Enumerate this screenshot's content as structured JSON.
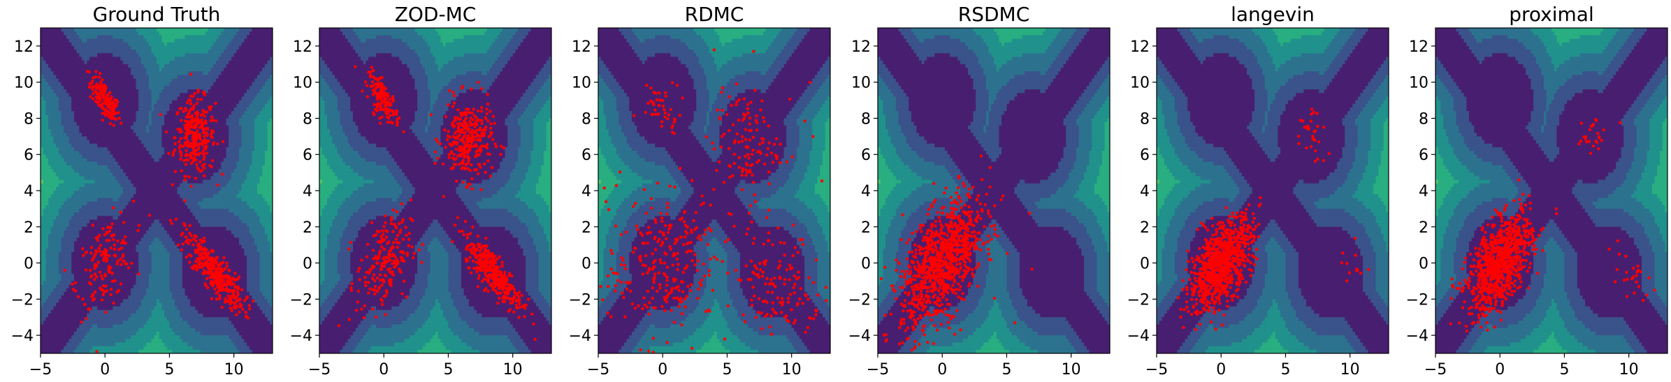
{
  "chart_data": [
    {
      "type": "scatter",
      "title": "Ground Truth",
      "xlim": [
        -5,
        13
      ],
      "ylim": [
        -5,
        13
      ],
      "xticks": [
        -5,
        0,
        5,
        10
      ],
      "yticks": [
        -4,
        -2,
        0,
        2,
        4,
        6,
        8,
        10,
        12
      ],
      "background": "filled contour of potential (purple low to yellow high)",
      "point_color": "#ff0000",
      "clusters": [
        {
          "center": [
            0,
            9
          ],
          "cov": [
            [
              0.35,
              -0.28
            ],
            [
              -0.28,
              0.45
            ]
          ],
          "n": 150
        },
        {
          "center": [
            7,
            7
          ],
          "cov": [
            [
              0.6,
              0.0
            ],
            [
              0.0,
              1.1
            ]
          ],
          "n": 300
        },
        {
          "center": [
            0,
            0
          ],
          "cov": [
            [
              1.2,
              0.6
            ],
            [
              0.6,
              1.6
            ]
          ],
          "n": 150
        },
        {
          "center": [
            8.5,
            -0.5
          ],
          "cov": [
            [
              1.3,
              -1.0
            ],
            [
              -1.0,
              1.1
            ]
          ],
          "n": 400
        }
      ]
    },
    {
      "type": "scatter",
      "title": "ZOD-MC",
      "xlim": [
        -5,
        13
      ],
      "ylim": [
        -5,
        13
      ],
      "xticks": [
        -5,
        0,
        5,
        10
      ],
      "yticks": [
        -4,
        -2,
        0,
        2,
        4,
        6,
        8,
        10,
        12
      ],
      "point_color": "#ff0000",
      "clusters": [
        {
          "center": [
            0,
            9
          ],
          "cov": [
            [
              0.35,
              -0.28
            ],
            [
              -0.28,
              0.45
            ]
          ],
          "n": 150
        },
        {
          "center": [
            6.5,
            6.8
          ],
          "cov": [
            [
              0.9,
              0.0
            ],
            [
              0.0,
              1.2
            ]
          ],
          "n": 300
        },
        {
          "center": [
            0,
            0
          ],
          "cov": [
            [
              1.1,
              0.5
            ],
            [
              0.5,
              1.8
            ]
          ],
          "n": 200
        },
        {
          "center": [
            8.5,
            -0.5
          ],
          "cov": [
            [
              1.3,
              -1.0
            ],
            [
              -1.0,
              1.1
            ]
          ],
          "n": 350
        }
      ]
    },
    {
      "type": "scatter",
      "title": "RDMC",
      "xlim": [
        -5,
        13
      ],
      "ylim": [
        -5,
        13
      ],
      "xticks": [
        -5,
        0,
        5,
        10
      ],
      "yticks": [
        -4,
        -2,
        0,
        2,
        4,
        6,
        8,
        10,
        12
      ],
      "point_color": "#ff0000",
      "clusters": [
        {
          "center": [
            0,
            8.5
          ],
          "cov": [
            [
              0.5,
              -0.2
            ],
            [
              -0.2,
              0.5
            ]
          ],
          "n": 40
        },
        {
          "center": [
            6.5,
            6.5
          ],
          "cov": [
            [
              1.6,
              0.0
            ],
            [
              0.0,
              2.2
            ]
          ],
          "n": 120
        },
        {
          "center": [
            0,
            0
          ],
          "cov": [
            [
              4.5,
              1.0
            ],
            [
              1.0,
              4.5
            ]
          ],
          "n": 260
        },
        {
          "center": [
            9,
            -1
          ],
          "cov": [
            [
              3.0,
              -0.8
            ],
            [
              -0.8,
              2.5
            ]
          ],
          "n": 140
        },
        {
          "center": [
            4,
            4
          ],
          "cov": [
            [
              40,
              0
            ],
            [
              0,
              40
            ]
          ],
          "n": 40
        }
      ]
    },
    {
      "type": "scatter",
      "title": "RSDMC",
      "xlim": [
        -5,
        13
      ],
      "ylim": [
        -5,
        13
      ],
      "xticks": [
        -5,
        0,
        5,
        10
      ],
      "yticks": [
        -4,
        -2,
        0,
        2,
        4,
        6,
        8,
        10,
        12
      ],
      "point_color": "#ff0000",
      "clusters": [
        {
          "center": [
            0,
            0
          ],
          "cov": [
            [
              2.5,
              1.5
            ],
            [
              1.5,
              3.0
            ]
          ],
          "n": 1000
        },
        {
          "center": [
            1,
            -1
          ],
          "cov": [
            [
              12,
              4
            ],
            [
              4,
              10
            ]
          ],
          "n": 20
        }
      ]
    },
    {
      "type": "scatter",
      "title": "langevin",
      "xlim": [
        -5,
        13
      ],
      "ylim": [
        -5,
        13
      ],
      "xticks": [
        -5,
        0,
        5,
        10
      ],
      "yticks": [
        -4,
        -2,
        0,
        2,
        4,
        6,
        8,
        10,
        12
      ],
      "point_color": "#ff0000",
      "clusters": [
        {
          "center": [
            0,
            0
          ],
          "cov": [
            [
              1.5,
              0.9
            ],
            [
              0.9,
              1.6
            ]
          ],
          "n": 900
        },
        {
          "center": [
            7,
            7
          ],
          "cov": [
            [
              0.4,
              0.0
            ],
            [
              0.0,
              0.9
            ]
          ],
          "n": 30
        },
        {
          "center": [
            10.5,
            -0.2
          ],
          "cov": [
            [
              0.5,
              -0.2
            ],
            [
              -0.2,
              0.6
            ]
          ],
          "n": 12
        }
      ]
    },
    {
      "type": "scatter",
      "title": "proximal",
      "xlim": [
        -5,
        13
      ],
      "ylim": [
        -5,
        13
      ],
      "xticks": [
        -5,
        0,
        5,
        10
      ],
      "yticks": [
        -4,
        -2,
        0,
        2,
        4,
        6,
        8,
        10,
        12
      ],
      "point_color": "#ff0000",
      "clusters": [
        {
          "center": [
            0,
            0
          ],
          "cov": [
            [
              1.5,
              0.9
            ],
            [
              0.9,
              1.8
            ]
          ],
          "n": 900
        },
        {
          "center": [
            7,
            7
          ],
          "cov": [
            [
              0.5,
              0.0
            ],
            [
              0.0,
              0.4
            ]
          ],
          "n": 25
        },
        {
          "center": [
            10,
            -0.5
          ],
          "cov": [
            [
              0.6,
              -0.3
            ],
            [
              -0.3,
              0.8
            ]
          ],
          "n": 25
        }
      ]
    }
  ],
  "contour_colors": [
    "#481f70",
    "#3a538b",
    "#2c728e",
    "#21918c",
    "#28ae80",
    "#5ec962",
    "#addc30",
    "#e8e419"
  ]
}
